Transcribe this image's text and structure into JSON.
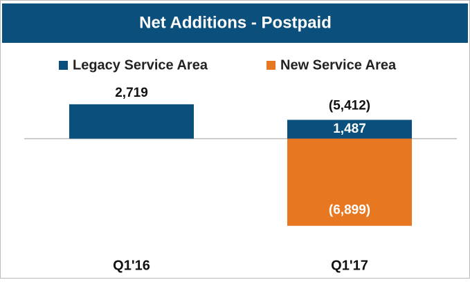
{
  "chart_data": {
    "type": "stacked_bar",
    "title": "Net Additions - Postpaid",
    "categories": [
      "Q1'16",
      "Q1'17"
    ],
    "series": [
      {
        "name": "Legacy Service Area",
        "color": "#0b4f7c",
        "values": [
          2719,
          1487
        ],
        "value_labels": [
          "2,719",
          "1,487"
        ]
      },
      {
        "name": "New Service Area",
        "color": "#e87722",
        "values": [
          null,
          -6899
        ],
        "value_labels": [
          null,
          "(6,899)"
        ]
      }
    ],
    "totals": [
      null,
      -5412
    ],
    "total_labels": [
      null,
      "(5,412)"
    ],
    "ylim": [
      -8500,
      5500
    ],
    "legend": "top"
  }
}
